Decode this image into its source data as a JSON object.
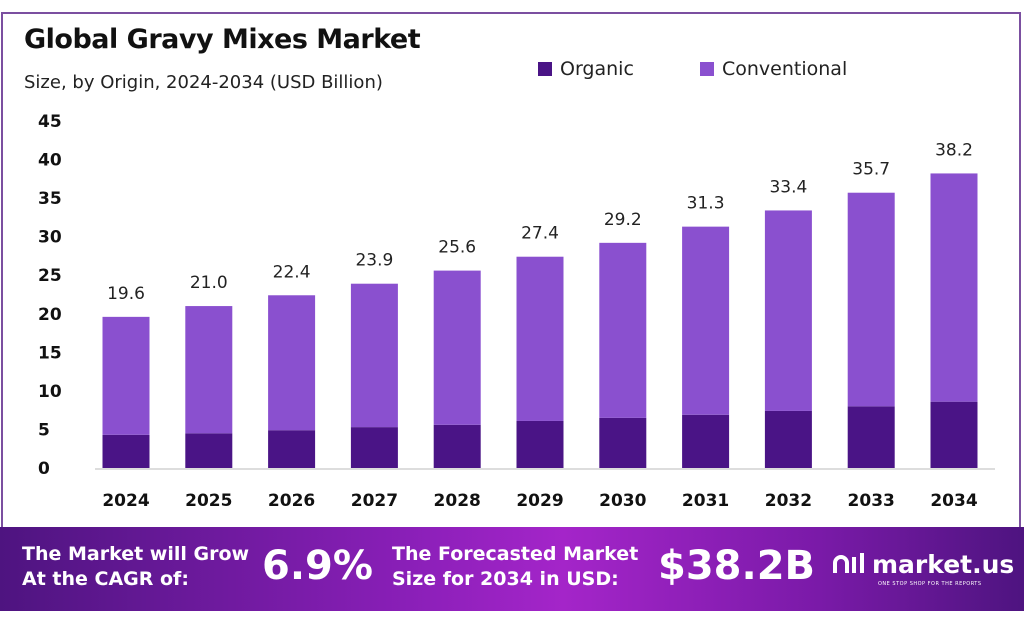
{
  "chart_data": {
    "type": "bar",
    "stacked": true,
    "title": "Global Gravy Mixes Market",
    "subtitle": "Size, by Origin, 2024-2034 (USD Billion)",
    "xlabel": "",
    "ylabel": "",
    "ylim": [
      0,
      45
    ],
    "yticks": [
      0,
      5,
      10,
      15,
      20,
      25,
      30,
      35,
      40,
      45
    ],
    "grid": false,
    "legend_placement": "top-right",
    "categories": [
      "2024",
      "2025",
      "2026",
      "2027",
      "2028",
      "2029",
      "2030",
      "2031",
      "2032",
      "2033",
      "2034"
    ],
    "series": [
      {
        "name": "Organic",
        "color": "#4a1486",
        "values": [
          4.3,
          4.5,
          4.9,
          5.3,
          5.6,
          6.1,
          6.5,
          6.9,
          7.4,
          8.0,
          8.6
        ]
      },
      {
        "name": "Conventional",
        "color": "#8a50cf",
        "values": [
          15.3,
          16.5,
          17.5,
          18.6,
          20.0,
          21.3,
          22.7,
          24.4,
          26.0,
          27.7,
          29.6
        ]
      }
    ],
    "totals": [
      "19.6",
      "21.0",
      "22.4",
      "23.9",
      "25.6",
      "27.4",
      "29.2",
      "31.3",
      "33.4",
      "35.7",
      "38.2"
    ]
  },
  "footer": {
    "cagr_label_1": "The Market will Grow",
    "cagr_label_2": "At the CAGR of:",
    "cagr_value": "6.9%",
    "forecast_label_1": "The Forecasted Market",
    "forecast_label_2": "Size for 2034 in USD:",
    "forecast_value": "$38.2B",
    "logo_text": "market.us",
    "logo_tagline": "ONE STOP SHOP FOR THE REPORTS"
  }
}
